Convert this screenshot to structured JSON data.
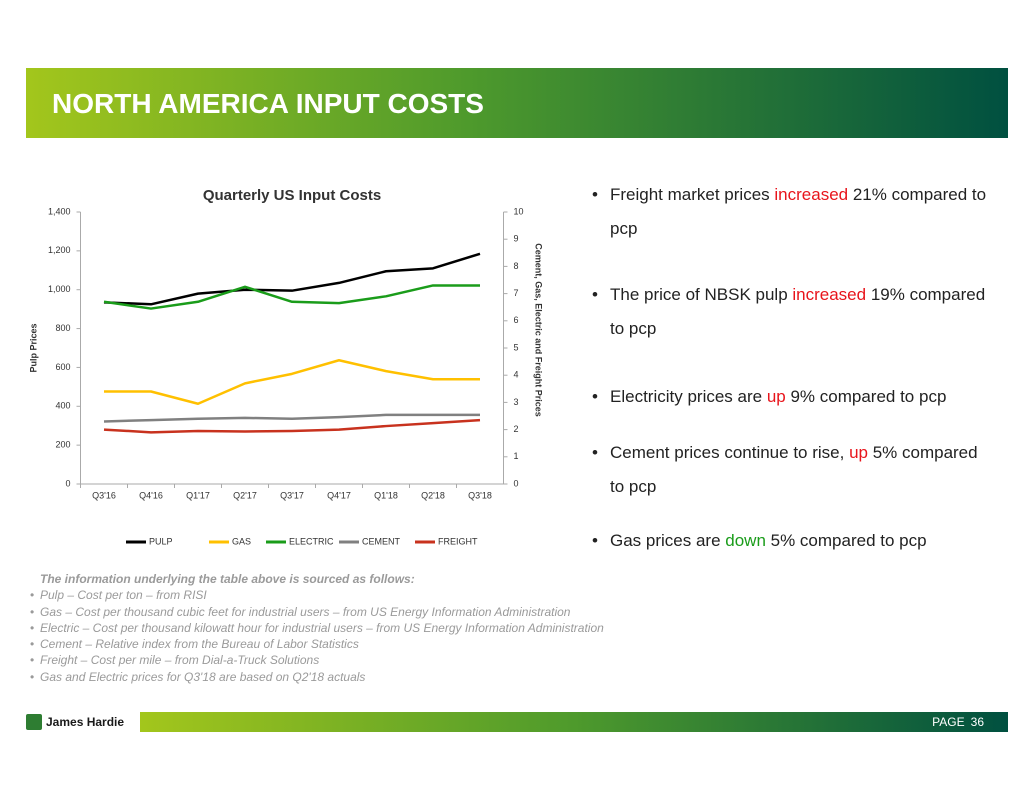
{
  "header": {
    "title": "NORTH AMERICA INPUT COSTS"
  },
  "chart_data": {
    "type": "line",
    "title": "Quarterly US Input Costs",
    "categories": [
      "Q3'16",
      "Q4'16",
      "Q1'17",
      "Q2'17",
      "Q3'17",
      "Q4'17",
      "Q1'18",
      "Q2'18",
      "Q3'18"
    ],
    "y_label": "Pulp Prices",
    "y2_label": "Cement, Gas, Electric and Freight Prices",
    "ylim": [
      0,
      1400
    ],
    "yticks": [
      0,
      200,
      400,
      600,
      800,
      {
        "value": 1000,
        "label": "1,000"
      },
      {
        "value": 1200,
        "label": "1,200"
      },
      {
        "value": 1400,
        "label": "1,400"
      }
    ],
    "y2lim": [
      0,
      10
    ],
    "y2ticks": [
      0,
      1,
      2,
      3,
      4,
      5,
      6,
      7,
      8,
      9,
      10
    ],
    "legend": "bottom",
    "series": [
      {
        "name": "PULP",
        "color": "#000000",
        "values": [
          935,
          925,
          980,
          1000,
          995,
          1035,
          1095,
          1110,
          1185
        ]
      },
      {
        "name": "GAS",
        "color": "#ffc000",
        "axis": "y2",
        "values": [
          3.4,
          3.4,
          2.95,
          3.7,
          4.05,
          4.55,
          4.15,
          3.85,
          3.85
        ]
      },
      {
        "name": "ELECTRIC",
        "color": "#1a9c1a",
        "axis": "y2",
        "values": [
          6.7,
          6.45,
          6.7,
          7.25,
          6.7,
          6.65,
          6.9,
          7.3,
          7.3
        ]
      },
      {
        "name": "CEMENT",
        "color": "#808080",
        "axis": "y2",
        "values": [
          2.3,
          2.35,
          2.4,
          2.43,
          2.4,
          2.46,
          2.54,
          2.54,
          2.54
        ]
      },
      {
        "name": "FREIGHT",
        "color": "#c8321e",
        "axis": "y2",
        "values": [
          2.0,
          1.9,
          1.95,
          1.93,
          1.95,
          2.0,
          2.13,
          2.24,
          2.35
        ]
      }
    ]
  },
  "bullets": [
    [
      "Freight market prices ",
      "increased",
      " 21% compared to pcp"
    ],
    [
      "The price of NBSK pulp ",
      "increased",
      " 19% compared to pcp"
    ],
    [
      "Electricity prices are ",
      "up",
      " 9% compared to pcp"
    ],
    [
      "Cement prices continue to rise, ",
      "up",
      " 5% compared to pcp"
    ],
    [
      "Gas prices are ",
      "down",
      " 5% compared to pcp"
    ]
  ],
  "bullet_highlight_colors": [
    "#e8141b",
    "#e8141b",
    "#e8141b",
    "#e8141b",
    "#1a9c1a"
  ],
  "notes": {
    "heading": "The information underlying the table above is sourced as follows:",
    "lines": [
      "Pulp – Cost per ton – from RISI",
      "Gas – Cost per thousand cubic feet for industrial users – from US Energy Information Administration",
      "Electric – Cost per thousand kilowatt hour for industrial users – from US Energy Information Administration",
      "Cement – Relative index from the Bureau of Labor Statistics",
      "Freight – Cost per mile – from Dial-a-Truck Solutions",
      "Gas and Electric prices for Q3'18 are based on Q2'18 actuals"
    ]
  },
  "footer": {
    "logo": "James Hardie",
    "page_label": "PAGE",
    "page_number": "36"
  }
}
